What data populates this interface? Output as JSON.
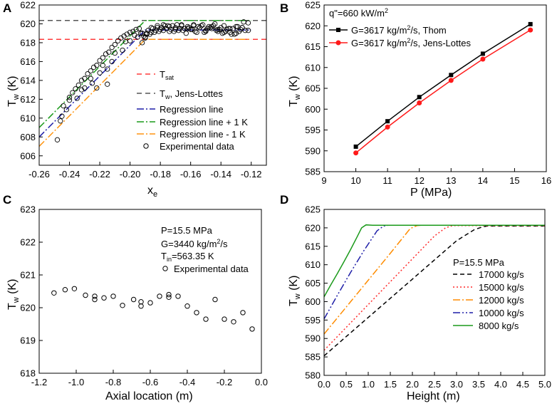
{
  "panels": [
    "A",
    "B",
    "C",
    "D"
  ],
  "chart_data": [
    {
      "id": "A",
      "type": "scatter",
      "xlabel_main": "x",
      "xlabel_sub": "e",
      "ylabel_main": "T",
      "ylabel_sub": "w",
      "ylabel_rest": " (K)",
      "xlim": [
        -0.26,
        -0.11
      ],
      "ylim": [
        605,
        622
      ],
      "xticks": [
        -0.26,
        -0.24,
        -0.22,
        -0.2,
        -0.18,
        -0.16,
        -0.14,
        -0.12
      ],
      "yticks": [
        606,
        608,
        610,
        612,
        614,
        616,
        618,
        620,
        622
      ],
      "series": [
        {
          "name": "T_sat",
          "label_main": "T",
          "label_sub": "sat",
          "kind": "line",
          "color": "#ff3b3b",
          "dash": "7,5",
          "x": [
            -0.26,
            -0.11
          ],
          "y": [
            618.35,
            618.35
          ]
        },
        {
          "name": "Tw_jens_lottes",
          "label_main": "T",
          "label_sub": "w",
          "label_rest": ", Jens-Lottes",
          "kind": "line",
          "color": "#555555",
          "dash": "7,5",
          "x": [
            -0.26,
            -0.11
          ],
          "y": [
            620.35,
            620.35
          ]
        },
        {
          "name": "regression",
          "label": "Regression line",
          "kind": "line",
          "color": "#1f1fa8",
          "dash": "10,3,2,3",
          "x": [
            -0.26,
            -0.19,
            -0.12
          ],
          "y": [
            608.0,
            619.35,
            619.35
          ]
        },
        {
          "name": "regression_plus",
          "label": "Regression line + 1 K",
          "kind": "line",
          "color": "#1a9a1a",
          "dash": "10,3,2,3",
          "x": [
            -0.26,
            -0.19,
            -0.12
          ],
          "y": [
            609.0,
            620.35,
            620.35
          ]
        },
        {
          "name": "regression_minus",
          "label": "Regression line - 1 K",
          "kind": "line",
          "color": "#ff9410",
          "dash": "10,3,2,3",
          "x": [
            -0.26,
            -0.19,
            -0.12
          ],
          "y": [
            607.0,
            618.35,
            618.35
          ]
        },
        {
          "name": "experimental",
          "label": "Experimental data",
          "kind": "scatter",
          "x": [
            -0.248,
            -0.246,
            -0.244,
            -0.242,
            -0.24,
            -0.238,
            -0.236,
            -0.234,
            -0.232,
            -0.23,
            -0.228,
            -0.226,
            -0.224,
            -0.222,
            -0.22,
            -0.218,
            -0.216,
            -0.214,
            -0.212,
            -0.21,
            -0.208,
            -0.206,
            -0.204,
            -0.202,
            -0.2,
            -0.198,
            -0.196,
            -0.194,
            -0.192,
            -0.19,
            -0.235,
            -0.23,
            -0.225,
            -0.22,
            -0.215,
            -0.212,
            -0.205,
            -0.2,
            -0.197,
            -0.193,
            -0.245,
            -0.24,
            -0.232,
            -0.226,
            -0.218,
            -0.21,
            -0.203,
            -0.195,
            -0.215,
            -0.222,
            -0.188,
            -0.186,
            -0.184,
            -0.182,
            -0.18,
            -0.178,
            -0.176,
            -0.174,
            -0.172,
            -0.17,
            -0.168,
            -0.166,
            -0.164,
            -0.162,
            -0.16,
            -0.158,
            -0.156,
            -0.154,
            -0.152,
            -0.15,
            -0.148,
            -0.146,
            -0.144,
            -0.142,
            -0.14,
            -0.138,
            -0.136,
            -0.134,
            -0.132,
            -0.13,
            -0.128,
            -0.126,
            -0.124,
            -0.122,
            -0.187,
            -0.183,
            -0.179,
            -0.175,
            -0.171,
            -0.167,
            -0.163,
            -0.159,
            -0.155,
            -0.151,
            -0.147,
            -0.143,
            -0.139,
            -0.135,
            -0.131,
            -0.127,
            -0.185,
            -0.181,
            -0.177,
            -0.173,
            -0.169,
            -0.165,
            -0.161,
            -0.157,
            -0.153,
            -0.149,
            -0.145,
            -0.141,
            -0.137,
            -0.133,
            -0.129,
            -0.125,
            -0.189,
            -0.19,
            -0.192,
            -0.191,
            -0.189,
            -0.186,
            -0.182,
            -0.178,
            -0.174,
            -0.17,
            -0.166,
            -0.162,
            -0.158,
            -0.154,
            -0.15,
            -0.146,
            -0.142,
            -0.138,
            -0.134,
            -0.13,
            -0.126,
            -0.122
          ],
          "y": [
            607.7,
            609.7,
            611.3,
            610.9,
            612.2,
            612.7,
            613.1,
            613.5,
            614.0,
            614.2,
            614.7,
            615.0,
            615.4,
            615.6,
            616.1,
            616.4,
            616.8,
            617.0,
            617.5,
            617.8,
            618.2,
            618.5,
            618.7,
            618.9,
            619.1,
            619.2,
            619.4,
            619.5,
            619.0,
            618.6,
            612.1,
            613.2,
            613.7,
            614.8,
            615.2,
            616.0,
            617.2,
            618.2,
            618.8,
            619.0,
            610.2,
            611.9,
            613.0,
            614.2,
            615.6,
            616.9,
            618.1,
            618.6,
            613.6,
            613.2,
            619.3,
            619.6,
            619.1,
            619.8,
            619.4,
            619.9,
            619.5,
            619.2,
            619.8,
            619.6,
            619.3,
            619.9,
            619.5,
            619.7,
            619.4,
            619.8,
            619.1,
            619.6,
            619.9,
            619.3,
            619.7,
            619.5,
            620.0,
            619.2,
            619.6,
            619.8,
            619.4,
            619.1,
            619.5,
            619.7,
            619.2,
            619.6,
            619.3,
            620.1,
            618.9,
            619.3,
            619.6,
            619.8,
            619.2,
            619.5,
            619.0,
            619.4,
            619.7,
            619.1,
            619.6,
            619.3,
            619.0,
            619.5,
            618.9,
            619.4,
            619.5,
            619.2,
            619.8,
            619.4,
            619.9,
            619.3,
            619.6,
            619.2,
            619.8,
            619.5,
            619.8,
            619.4,
            619.2,
            618.9,
            619.7,
            620.2,
            618.9,
            618.5,
            618.0,
            618.7,
            619.0,
            619.1,
            619.6,
            619.3,
            619.7,
            619.4,
            619.8,
            619.5,
            619.9,
            619.6,
            619.2,
            619.7,
            619.4,
            619.1,
            619.5,
            619.0,
            619.6,
            619.3
          ]
        }
      ]
    },
    {
      "id": "B",
      "type": "line",
      "xlabel": "P (MPa)",
      "ylabel_main": "T",
      "ylabel_sub": "w",
      "ylabel_rest": " (K)",
      "xlim": [
        9,
        16
      ],
      "ylim": [
        585,
        625
      ],
      "xticks": [
        9,
        10,
        11,
        12,
        13,
        14,
        15,
        16
      ],
      "yticks": [
        585,
        590,
        595,
        600,
        605,
        610,
        615,
        620,
        625
      ],
      "annotation": "q\"=660 kW/m",
      "annotation_sup": "2",
      "series": [
        {
          "name": "thom",
          "label_pre": "G=3617 kg/m",
          "label_sup": "2",
          "label_post": "/s, Thom",
          "color": "#000000",
          "marker": "square",
          "x": [
            10,
            11,
            12,
            13,
            14,
            15.5
          ],
          "y": [
            591.0,
            597.1,
            602.9,
            608.2,
            613.3,
            620.4
          ]
        },
        {
          "name": "jens_lottes",
          "label_pre": "G=3617 kg/m",
          "label_sup": "2",
          "label_post": "/s, Jens-Lottes",
          "color": "#ff1a1a",
          "marker": "circle",
          "x": [
            10,
            11,
            12,
            13,
            14,
            15.5
          ],
          "y": [
            589.5,
            595.7,
            601.5,
            606.9,
            612.0,
            619.0
          ]
        }
      ]
    },
    {
      "id": "C",
      "type": "scatter",
      "xlabel": "Axial location (m)",
      "ylabel_main": "T",
      "ylabel_sub": "w",
      "ylabel_rest": " (K)",
      "xlim": [
        -1.2,
        0.0
      ],
      "ylim": [
        618,
        623
      ],
      "xticks": [
        -1.2,
        -1.0,
        -0.8,
        -0.6,
        -0.4,
        -0.2,
        0.0
      ],
      "xtick_labels": [
        "-1.2",
        "-1.0",
        "-0.8",
        "-0.6",
        "-0.4",
        "-0.2",
        "0.0"
      ],
      "yticks": [
        618,
        619,
        620,
        621,
        622,
        623
      ],
      "annotations": {
        "line1": "P=15.5 MPa",
        "line2_pre": "G=3440 kg/m",
        "line2_sup": "2",
        "line2_post": "/s",
        "line3_main": "T",
        "line3_sub": "in",
        "line3_rest": "=563.35 K"
      },
      "series": [
        {
          "name": "experimental",
          "label": "Experimental data",
          "x": [
            -1.12,
            -1.06,
            -1.01,
            -0.95,
            -0.9,
            -0.9,
            -0.85,
            -0.8,
            -0.75,
            -0.69,
            -0.65,
            -0.65,
            -0.6,
            -0.55,
            -0.5,
            -0.5,
            -0.45,
            -0.4,
            -0.35,
            -0.3,
            -0.25,
            -0.2,
            -0.15,
            -0.1,
            -0.05
          ],
          "y": [
            620.45,
            620.55,
            620.58,
            620.38,
            620.35,
            620.25,
            620.3,
            620.35,
            620.07,
            620.25,
            620.18,
            620.05,
            620.15,
            620.35,
            620.4,
            620.32,
            620.35,
            620.05,
            619.85,
            619.65,
            620.25,
            619.65,
            619.57,
            619.85,
            619.35
          ]
        }
      ]
    },
    {
      "id": "D",
      "type": "line",
      "xlabel": "Height (m)",
      "ylabel_main": "T",
      "ylabel_sub": "w",
      "ylabel_rest": " (K)",
      "xlim": [
        0.0,
        5.0
      ],
      "ylim": [
        580,
        625
      ],
      "xticks": [
        0.0,
        0.5,
        1.0,
        1.5,
        2.0,
        2.5,
        3.0,
        3.5,
        4.0,
        4.5,
        5.0
      ],
      "xtick_labels": [
        "0.0",
        "0.5",
        "1.0",
        "1.5",
        "2.0",
        "2.5",
        "3.0",
        "3.5",
        "4.0",
        "4.5",
        "5.0"
      ],
      "yticks": [
        580,
        585,
        590,
        595,
        600,
        605,
        610,
        615,
        620,
        625
      ],
      "legend_title": "P=15.5 MPa",
      "series": [
        {
          "name": "17000 kg/s",
          "color": "#000000",
          "dash": "6,4",
          "x": [
            0.0,
            0.5,
            1.0,
            1.5,
            2.0,
            2.5,
            3.0,
            3.4,
            3.6,
            3.7,
            5.0
          ],
          "y": [
            585.3,
            590.5,
            595.7,
            600.9,
            606.1,
            611.3,
            616.5,
            619.5,
            620.3,
            620.5,
            620.5
          ]
        },
        {
          "name": "15000 kg/s",
          "color": "#ff2a2a",
          "dash": "2,3",
          "x": [
            0.0,
            0.5,
            1.0,
            1.5,
            2.0,
            2.5,
            2.75,
            2.9,
            5.0
          ],
          "y": [
            586.8,
            593.0,
            599.2,
            605.4,
            611.6,
            617.8,
            620.0,
            620.6,
            620.6
          ]
        },
        {
          "name": "12000 kg/s",
          "color": "#ff8c00",
          "dash": "10,3,2,3",
          "x": [
            0.0,
            0.5,
            1.0,
            1.5,
            1.95,
            2.1,
            2.2,
            5.0
          ],
          "y": [
            591.2,
            598.5,
            605.8,
            613.1,
            619.8,
            620.6,
            620.7,
            620.7
          ]
        },
        {
          "name": "10000 kg/s",
          "color": "#1f1fa8",
          "dash": "10,3,2,3,2,3",
          "x": [
            0.0,
            0.3,
            0.6,
            0.9,
            1.2,
            1.35,
            1.45,
            5.0
          ],
          "y": [
            595.3,
            601.7,
            607.9,
            613.8,
            619.2,
            620.5,
            620.7,
            620.7
          ]
        },
        {
          "name": "8000 kg/s",
          "color": "#1b9a1b",
          "dash": "",
          "x": [
            0.0,
            0.15,
            0.3,
            0.45,
            0.6,
            0.75,
            0.85,
            0.95,
            1.1,
            5.0
          ],
          "y": [
            601.3,
            604.5,
            607.6,
            610.8,
            614.1,
            617.6,
            620.0,
            620.8,
            620.7,
            620.7
          ]
        }
      ]
    }
  ]
}
